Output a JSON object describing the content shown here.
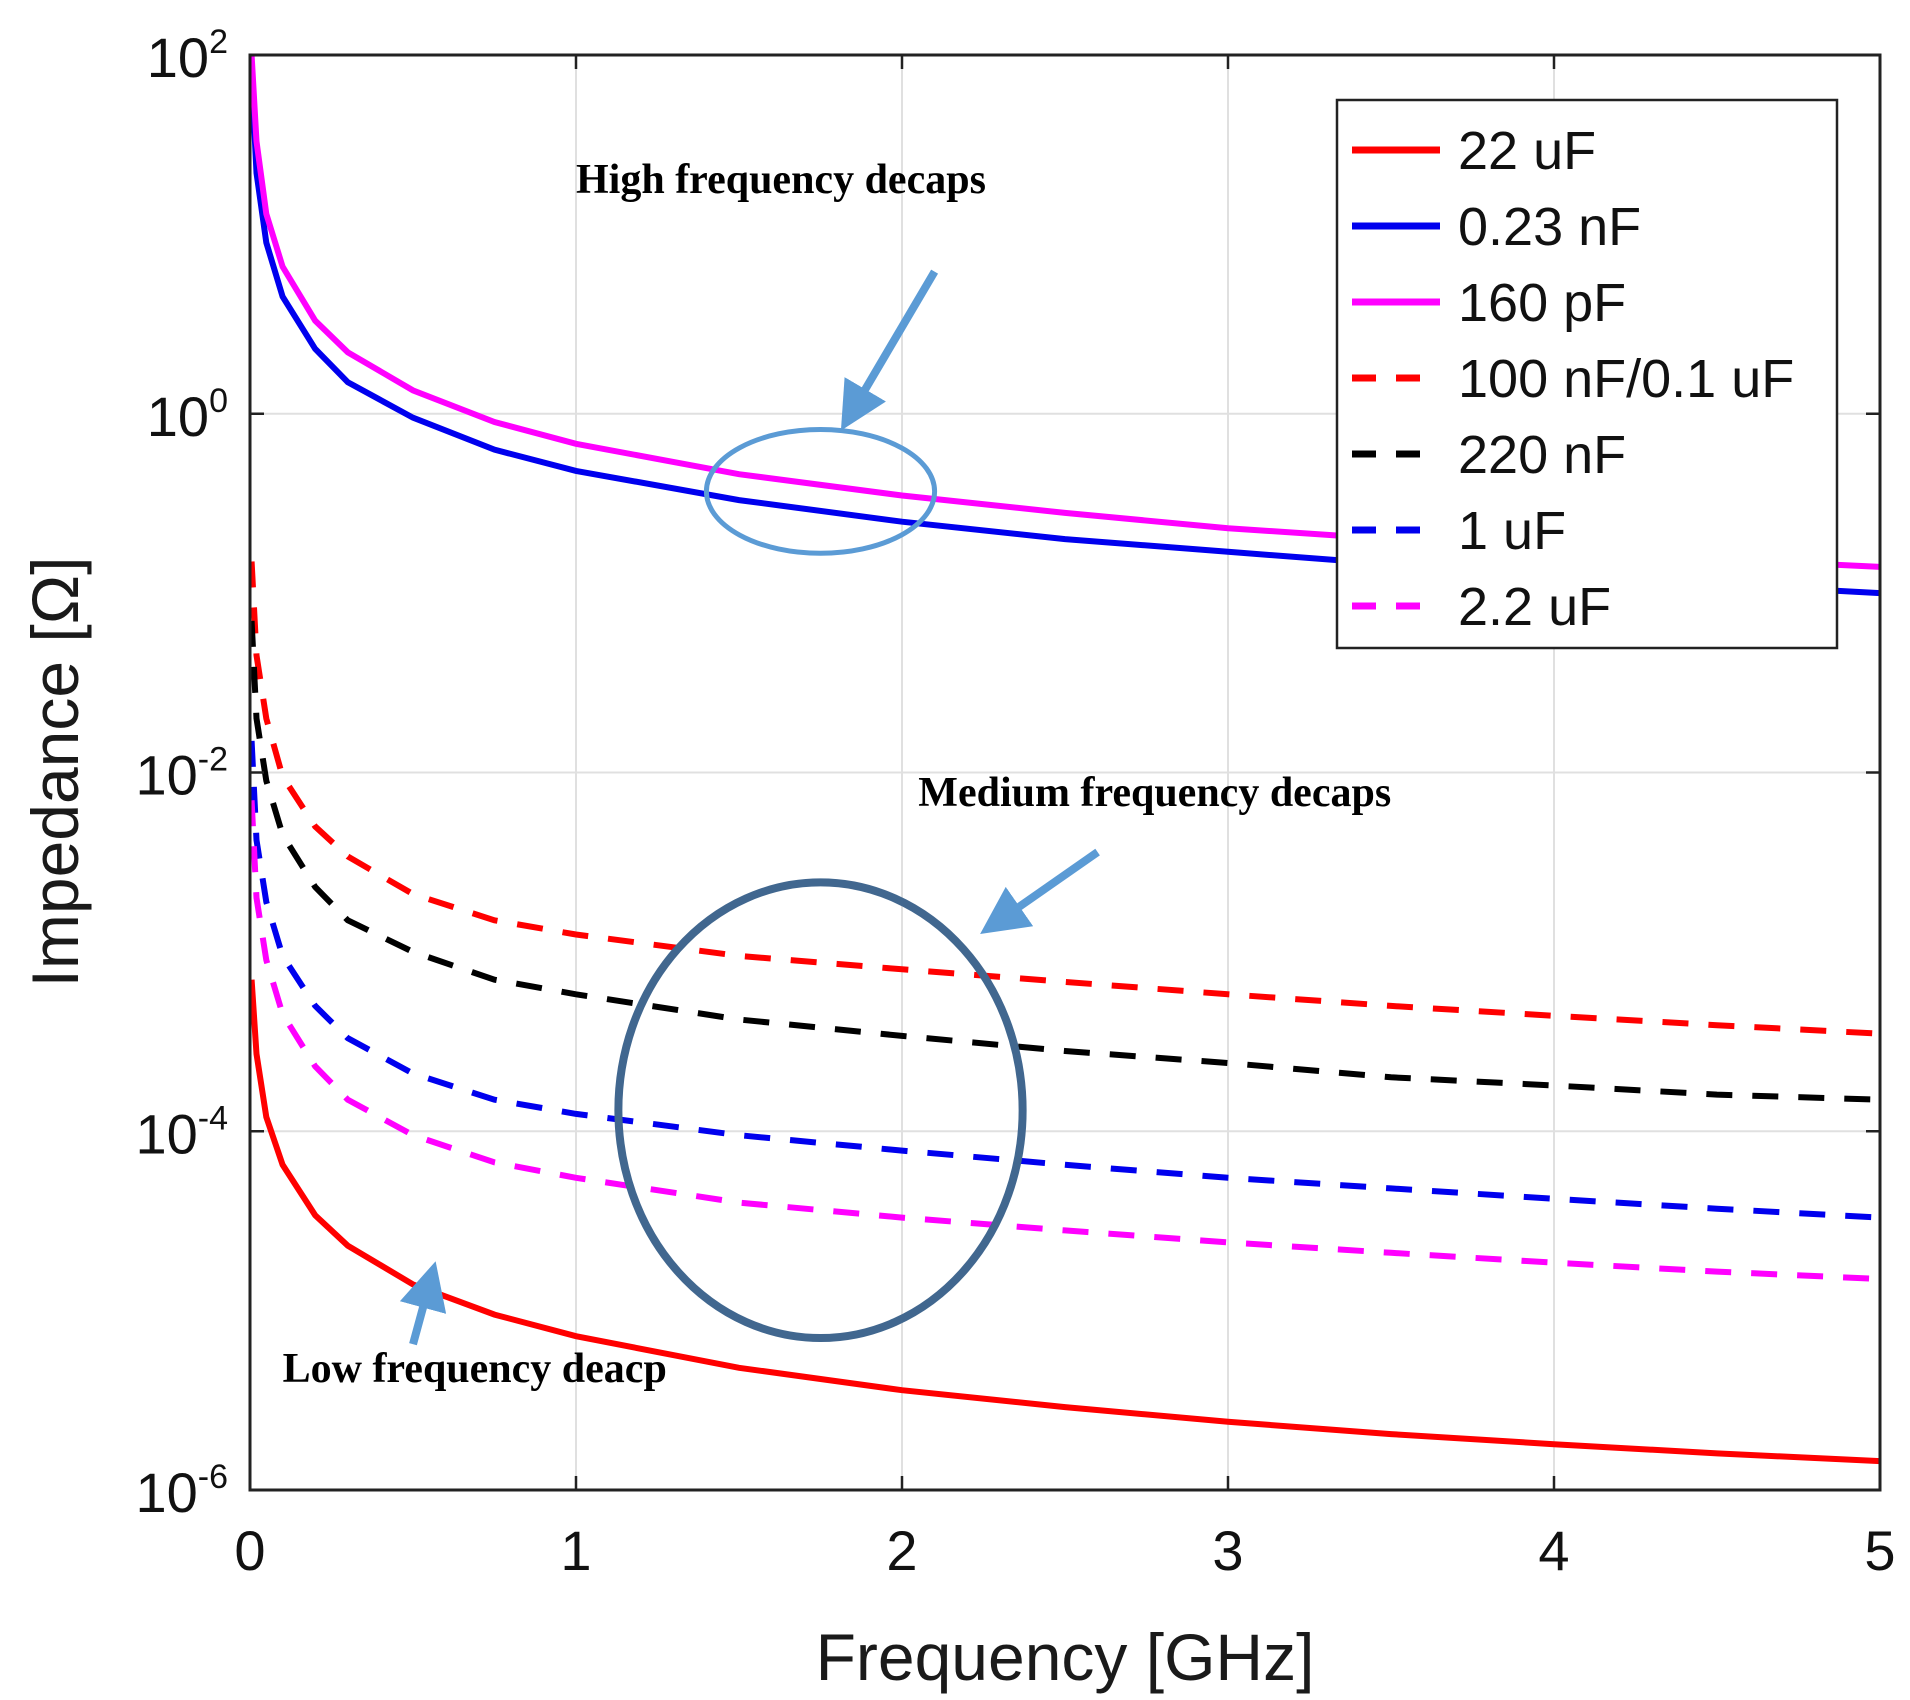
{
  "chart_data": {
    "type": "line",
    "title": "",
    "xlabel": "Frequency [GHz]",
    "ylabel": "Impedance [Ω]",
    "xlim": [
      0,
      5
    ],
    "ylim": [
      1e-06,
      100
    ],
    "yscale": "log",
    "grid": true,
    "legend_position": "top-right",
    "x_ticks": [
      {
        "value": 0,
        "label": "0"
      },
      {
        "value": 1,
        "label": "1"
      },
      {
        "value": 2,
        "label": "2"
      },
      {
        "value": 3,
        "label": "3"
      },
      {
        "value": 4,
        "label": "4"
      },
      {
        "value": 5,
        "label": "5"
      }
    ],
    "y_ticks": [
      {
        "value": 100,
        "base": "10",
        "exponent": "2"
      },
      {
        "value": 1,
        "base": "10",
        "exponent": "0"
      },
      {
        "value": 0.01,
        "base": "10",
        "exponent": "-2"
      },
      {
        "value": 0.0001,
        "base": "10",
        "exponent": "-4"
      },
      {
        "value": 1e-06,
        "base": "10",
        "exponent": "-6"
      }
    ],
    "series": [
      {
        "name": "22 uF",
        "color": "#ff0000",
        "style": "solid",
        "x": [
          0.005,
          0.02,
          0.05,
          0.1,
          0.2,
          0.3,
          0.5,
          0.75,
          1,
          1.5,
          2,
          2.5,
          3,
          3.5,
          4,
          4.5,
          5
        ],
        "values": [
          0.0007,
          0.00027,
          0.00012,
          6.5e-05,
          3.4e-05,
          2.3e-05,
          1.4e-05,
          9.5e-06,
          7.2e-06,
          4.8e-06,
          3.6e-06,
          2.9e-06,
          2.4e-06,
          2.05e-06,
          1.8e-06,
          1.6e-06,
          1.45e-06
        ]
      },
      {
        "name": "0.23 nF",
        "color": "#0000ee",
        "style": "solid",
        "x": [
          0.005,
          0.02,
          0.05,
          0.1,
          0.2,
          0.3,
          0.5,
          0.75,
          1,
          1.5,
          2,
          2.5,
          3,
          3.5,
          4,
          4.5,
          5
        ],
        "values": [
          80,
          22,
          9,
          4.5,
          2.3,
          1.5,
          0.95,
          0.63,
          0.48,
          0.33,
          0.25,
          0.2,
          0.17,
          0.145,
          0.125,
          0.112,
          0.1
        ]
      },
      {
        "name": "160 pF",
        "color": "#ff00ff",
        "style": "solid",
        "x": [
          0.005,
          0.02,
          0.05,
          0.1,
          0.2,
          0.3,
          0.5,
          0.75,
          1,
          1.5,
          2,
          2.5,
          3,
          3.5,
          4,
          4.5,
          5
        ],
        "values": [
          100,
          33,
          13,
          6.6,
          3.3,
          2.2,
          1.35,
          0.9,
          0.68,
          0.46,
          0.35,
          0.28,
          0.23,
          0.2,
          0.175,
          0.155,
          0.14
        ]
      },
      {
        "name": "100 nF/0.1 uF",
        "color": "#ff0000",
        "style": "dashed",
        "x": [
          0.005,
          0.02,
          0.05,
          0.1,
          0.2,
          0.3,
          0.5,
          0.75,
          1,
          1.5,
          2,
          2.5,
          3,
          3.5,
          4,
          4.5,
          5
        ],
        "values": [
          0.15,
          0.045,
          0.02,
          0.0095,
          0.005,
          0.0034,
          0.0021,
          0.0015,
          0.00125,
          0.00095,
          0.0008,
          0.00068,
          0.00058,
          0.0005,
          0.00044,
          0.00039,
          0.00035
        ]
      },
      {
        "name": "220 nF",
        "color": "#000000",
        "style": "dashed",
        "x": [
          0.005,
          0.02,
          0.05,
          0.1,
          0.2,
          0.3,
          0.5,
          0.75,
          1,
          1.5,
          2,
          2.5,
          3,
          3.5,
          4,
          4.5,
          5
        ],
        "values": [
          0.07,
          0.02,
          0.009,
          0.0045,
          0.0023,
          0.0015,
          0.001,
          0.0007,
          0.00058,
          0.00042,
          0.00034,
          0.00028,
          0.00024,
          0.0002,
          0.00018,
          0.00016,
          0.00015
        ]
      },
      {
        "name": "1 uF",
        "color": "#0000ee",
        "style": "dashed",
        "x": [
          0.005,
          0.02,
          0.05,
          0.1,
          0.2,
          0.3,
          0.5,
          0.75,
          1,
          1.5,
          2,
          2.5,
          3,
          3.5,
          4,
          4.5,
          5
        ],
        "values": [
          0.015,
          0.0042,
          0.0019,
          0.00095,
          0.0005,
          0.00033,
          0.00021,
          0.00015,
          0.000125,
          9.5e-05,
          7.8e-05,
          6.5e-05,
          5.5e-05,
          4.8e-05,
          4.2e-05,
          3.7e-05,
          3.3e-05
        ]
      },
      {
        "name": "2.2 uF",
        "color": "#ff00ff",
        "style": "dashed",
        "x": [
          0.005,
          0.02,
          0.05,
          0.1,
          0.2,
          0.3,
          0.5,
          0.75,
          1,
          1.5,
          2,
          2.5,
          3,
          3.5,
          4,
          4.5,
          5
        ],
        "values": [
          0.007,
          0.002,
          0.0009,
          0.00045,
          0.00023,
          0.00015,
          9.5e-05,
          6.7e-05,
          5.5e-05,
          4e-05,
          3.3e-05,
          2.8e-05,
          2.4e-05,
          2.1e-05,
          1.85e-05,
          1.65e-05,
          1.5e-05
        ]
      }
    ],
    "annotations": [
      {
        "text": "High frequency decaps",
        "x": 1.0,
        "y": 17
      },
      {
        "text": "Medium frequency decaps",
        "x": 2.05,
        "y": 0.0065
      },
      {
        "text": "Low frequency deacp",
        "x": 0.1,
        "y": 4e-06
      }
    ],
    "highlight_ellipses": [
      {
        "name": "high-frequency",
        "cx": 1.75,
        "cy": 0.47,
        "rx": 0.35,
        "ry_decades_top": 0.24,
        "ry_decades_bottom": 0.45,
        "color": "#5b9bd5"
      },
      {
        "name": "medium-frequency",
        "cx": 1.75,
        "cy": 0.00028,
        "rx": 0.62,
        "ry_decades_top": 0.94,
        "ry_decades_bottom": 1.6,
        "color": "#41678f"
      }
    ],
    "arrows": [
      {
        "name": "high-frequency",
        "from": [
          2.1,
          6.2
        ],
        "to": [
          1.85,
          1.05
        ],
        "color": "#5b9bd5"
      },
      {
        "name": "medium-frequency",
        "from": [
          2.6,
          0.0036
        ],
        "to": [
          2.3,
          0.0015
        ],
        "color": "#5b9bd5"
      },
      {
        "name": "low-frequency",
        "from": [
          0.5,
          6.5e-06
        ],
        "to": [
          0.55,
          1.4e-05
        ],
        "color": "#5b9bd5"
      }
    ]
  }
}
